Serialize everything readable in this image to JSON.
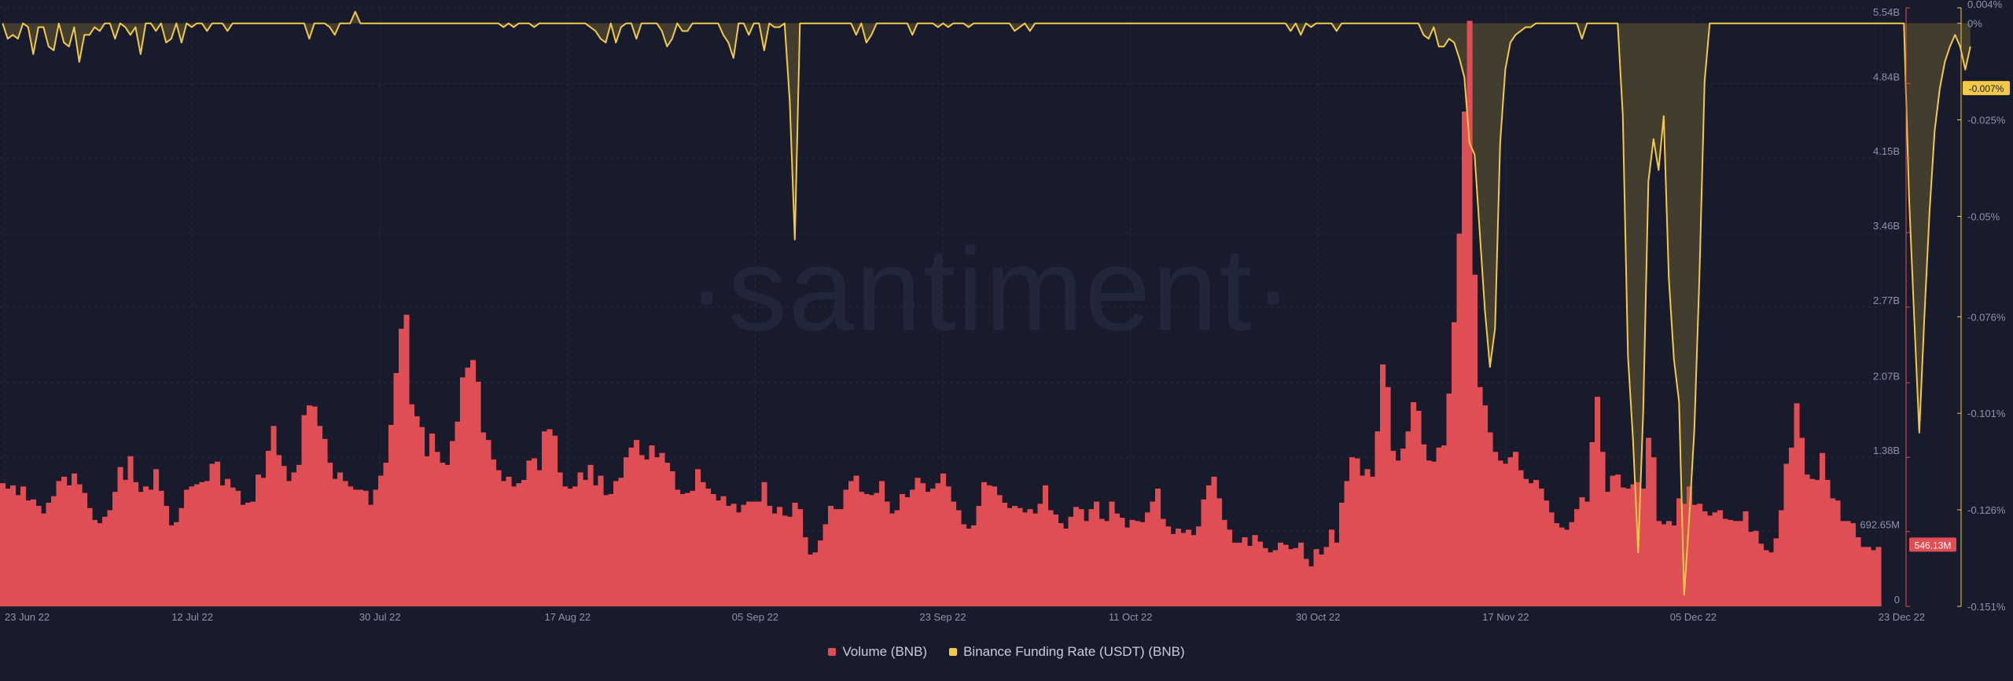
{
  "watermark": "·santiment·",
  "colors": {
    "background": "#181b2b",
    "volume": "#e04e55",
    "funding": "#f3c94a",
    "funding_fill": "#4a4330",
    "grid": "#262a3d"
  },
  "chart_data": {
    "type": "bar+line",
    "x_tick_labels": [
      "23 Jun 22",
      "12 Jul 22",
      "30 Jul 22",
      "17 Aug 22",
      "05 Sep 22",
      "23 Sep 22",
      "11 Oct 22",
      "30 Oct 22",
      "17 Nov 22",
      "05 Dec 22",
      "23 Dec 22"
    ],
    "left_axis": {
      "tick_labels": [
        "5.54B",
        "4.84B",
        "4.15B",
        "3.46B",
        "2.77B",
        "2.07B",
        "1.38B",
        "692.65M",
        "0"
      ],
      "ticks": [
        5.54,
        4.84,
        4.15,
        3.46,
        2.77,
        2.07,
        1.38,
        0.69265,
        0
      ],
      "range": [
        0,
        5.54
      ],
      "unit": "B",
      "current_label": "546.13M"
    },
    "right_axis": {
      "tick_labels": [
        "0.004%",
        "0%",
        "-0.025%",
        "-0.05%",
        "-0.076%",
        "-0.101%",
        "-0.126%",
        "-0.151%"
      ],
      "ticks": [
        0.004,
        0,
        -0.025,
        -0.05,
        -0.076,
        -0.101,
        -0.126,
        -0.151
      ],
      "range": [
        -0.151,
        0.004
      ],
      "unit": "%",
      "current_label": "-0.007%"
    },
    "series": [
      {
        "name": "Volume (BNB)",
        "axis": "left",
        "values": [
          1.14,
          1.09,
          1.12,
          1.03,
          1.11,
          0.98,
          0.99,
          0.93,
          0.86,
          0.96,
          1.02,
          1.16,
          1.2,
          1.12,
          1.23,
          1.13,
          1.05,
          0.91,
          0.8,
          0.77,
          0.83,
          0.89,
          1.06,
          1.29,
          1.17,
          1.39,
          1.15,
          1.06,
          1.11,
          1.08,
          1.27,
          1.07,
          0.93,
          0.75,
          0.78,
          0.91,
          1.08,
          1.11,
          1.13,
          1.15,
          1.16,
          1.32,
          1.34,
          1.12,
          1.18,
          1.1,
          1.07,
          0.94,
          0.96,
          0.97,
          1.22,
          1.19,
          1.44,
          1.67,
          1.4,
          1.3,
          1.16,
          1.24,
          1.31,
          1.77,
          1.86,
          1.85,
          1.67,
          1.55,
          1.33,
          1.18,
          1.24,
          1.16,
          1.11,
          1.08,
          1.08,
          1.07,
          0.94,
          1.08,
          1.21,
          1.33,
          1.68,
          2.16,
          2.57,
          2.7,
          1.87,
          1.76,
          1.66,
          1.39,
          1.6,
          1.43,
          1.33,
          1.31,
          1.53,
          1.71,
          2.12,
          2.21,
          2.28,
          2.08,
          1.61,
          1.54,
          1.36,
          1.26,
          1.16,
          1.2,
          1.11,
          1.14,
          1.17,
          1.35,
          1.37,
          1.26,
          1.62,
          1.64,
          1.58,
          1.24,
          1.11,
          1.09,
          1.11,
          1.24,
          1.17,
          1.31,
          1.12,
          1.21,
          1.03,
          1.04,
          1.16,
          1.19,
          1.38,
          1.47,
          1.54,
          1.4,
          1.36,
          1.49,
          1.38,
          1.42,
          1.33,
          1.25,
          1.08,
          1.04,
          1.05,
          1.07,
          1.27,
          1.15,
          1.09,
          1.04,
          0.98,
          1.02,
          0.93,
          0.95,
          0.87,
          0.94,
          0.97,
          0.97,
          0.97,
          1.15,
          0.93,
          0.86,
          0.92,
          0.84,
          0.83,
          0.96,
          0.9,
          0.64,
          0.48,
          0.5,
          0.61,
          0.76,
          0.93,
          0.9,
          0.9,
          1.08,
          1.16,
          1.21,
          1.06,
          1.04,
          1.03,
          1.05,
          1.16,
          0.97,
          0.86,
          0.89,
          1.04,
          1.01,
          1.08,
          1.19,
          1.14,
          1.06,
          1.09,
          1.14,
          1.23,
          1.11,
          0.97,
          0.89,
          0.76,
          0.72,
          0.75,
          0.93,
          1.15,
          1.12,
          1.11,
          1.03,
          0.96,
          0.91,
          0.93,
          0.91,
          0.87,
          0.9,
          0.86,
          0.95,
          1.12,
          0.89,
          0.85,
          0.77,
          0.72,
          0.83,
          0.92,
          0.9,
          0.79,
          0.9,
          0.97,
          0.81,
          0.79,
          0.97,
          0.86,
          0.82,
          0.73,
          0.8,
          0.79,
          0.78,
          0.87,
          0.97,
          1.09,
          0.81,
          0.74,
          0.67,
          0.72,
          0.68,
          0.71,
          0.66,
          0.74,
          0.99,
          1.12,
          1.2,
          1.0,
          0.8,
          0.71,
          0.59,
          0.59,
          0.64,
          0.56,
          0.66,
          0.6,
          0.54,
          0.5,
          0.52,
          0.59,
          0.57,
          0.53,
          0.54,
          0.59,
          0.44,
          0.37,
          0.53,
          0.48,
          0.55,
          0.71,
          0.59,
          0.96,
          1.16,
          1.38,
          1.37,
          1.21,
          1.27,
          1.2,
          1.62,
          2.24,
          2.03,
          1.44,
          1.35,
          1.46,
          1.62,
          1.89,
          1.81,
          1.5,
          1.35,
          1.34,
          1.47,
          1.49,
          1.97,
          2.63,
          3.45,
          4.58,
          5.42,
          3.07,
          2.03,
          1.86,
          1.61,
          1.43,
          1.35,
          1.32,
          1.38,
          1.43,
          1.26,
          1.18,
          1.14,
          1.17,
          1.09,
          0.98,
          0.87,
          0.77,
          0.73,
          0.71,
          0.78,
          0.9,
          1.01,
          0.97,
          1.52,
          1.94,
          1.43,
          1.06,
          1.21,
          1.22,
          1.1,
          1.09,
          1.13,
          1.15,
          1.09,
          1.56,
          1.38,
          0.79,
          0.76,
          0.79,
          0.75,
          1.0,
          0.95,
          1.11,
          0.94,
          0.95,
          0.88,
          0.84,
          0.87,
          0.89,
          0.81,
          0.8,
          0.79,
          0.79,
          0.88,
          0.69,
          0.7,
          0.58,
          0.52,
          0.5,
          0.63,
          0.89,
          1.32,
          1.47,
          1.88,
          1.56,
          1.22,
          1.18,
          1.17,
          1.42,
          1.17,
          1.0,
          0.98,
          0.79,
          0.79,
          0.77,
          0.64,
          0.55,
          0.55,
          0.52,
          0.55
        ],
        "color": "#e04e55"
      },
      {
        "name": "Binance Funding Rate (USDT) (BNB)",
        "axis": "right",
        "values": [
          0.0,
          -0.004,
          -0.003,
          -0.004,
          0.0,
          -0.001,
          -0.008,
          -0.001,
          -0.001,
          -0.006,
          -0.007,
          0.0,
          -0.005,
          -0.006,
          -0.001,
          -0.01,
          -0.003,
          -0.003,
          -0.001,
          -0.002,
          0.0,
          0.0,
          -0.004,
          0.0,
          -0.001,
          -0.003,
          -0.001,
          -0.008,
          0.0,
          0.0,
          -0.002,
          0.0,
          -0.005,
          -0.004,
          0.0,
          -0.005,
          0.0,
          -0.001,
          0.0,
          0.0,
          -0.002,
          0.0,
          0.0,
          0.0,
          -0.002,
          0.0,
          0.0,
          0.0,
          0.0,
          0.0,
          0.0,
          0.0,
          0.0,
          0.0,
          0.0,
          0.0,
          0.0,
          0.0,
          0.0,
          0.0,
          -0.004,
          0.0,
          0.0,
          0.0,
          -0.001,
          -0.003,
          0.0,
          0.0,
          0.0,
          0.003,
          0.0,
          0.0,
          0.0,
          0.0,
          0.0,
          0.0,
          0.0,
          0.0,
          0.0,
          0.0,
          0.0,
          0.0,
          0.0,
          0.0,
          0.0,
          0.0,
          0.0,
          0.0,
          0.0,
          0.0,
          0.0,
          0.0,
          0.0,
          0.0,
          0.0,
          0.0,
          0.0,
          0.0,
          -0.001,
          0.0,
          -0.001,
          0.0,
          0.0,
          0.0,
          -0.001,
          0.0,
          0.0,
          0.0,
          0.0,
          0.0,
          0.0,
          0.0,
          0.0,
          0.0,
          0.0,
          -0.001,
          -0.002,
          -0.004,
          -0.005,
          0.0,
          -0.005,
          -0.001,
          0.0,
          0.0,
          -0.004,
          0.0,
          0.0,
          0.0,
          0.0,
          -0.002,
          -0.006,
          -0.004,
          0.0,
          -0.002,
          -0.002,
          0.0,
          0.0,
          0.0,
          0.0,
          0.0,
          0.0,
          -0.003,
          -0.005,
          -0.009,
          0.0,
          0.0,
          -0.003,
          0.0,
          0.0,
          -0.007,
          0.0,
          -0.001,
          -0.001,
          0.0,
          -0.02,
          -0.056,
          0.0,
          0.0,
          0.0,
          0.0,
          0.0,
          0.0,
          0.0,
          0.0,
          0.0,
          0.0,
          0.0,
          -0.003,
          0.0,
          -0.005,
          -0.003,
          0.0,
          0.0,
          0.0,
          0.0,
          0.0,
          0.0,
          0.0,
          -0.003,
          0.0,
          0.0,
          0.0,
          0.0,
          -0.001,
          0.0,
          -0.001,
          0.0,
          0.0,
          0.0,
          -0.001,
          0.0,
          0.0,
          0.0,
          0.0,
          0.0,
          0.0,
          0.0,
          0.0,
          -0.002,
          -0.001,
          0.0,
          -0.002,
          0.0,
          0.0,
          0.0,
          0.0,
          0.0,
          0.0,
          0.0,
          0.0,
          0.0,
          0.0,
          0.0,
          0.0,
          0.0,
          0.0,
          0.0,
          0.0,
          0.0,
          0.0,
          0.0,
          0.0,
          0.0,
          0.0,
          0.0,
          0.0,
          0.0,
          0.0,
          0.0,
          0.0,
          0.0,
          0.0,
          0.0,
          0.0,
          0.0,
          0.0,
          0.0,
          0.0,
          0.0,
          0.0,
          0.0,
          0.0,
          0.0,
          0.0,
          0.0,
          0.0,
          0.0,
          0.0,
          0.0,
          0.0,
          0.0,
          0.0,
          -0.002,
          0.0,
          -0.003,
          0.0,
          -0.001,
          0.0,
          0.0,
          0.0,
          0.0,
          -0.002,
          0.0,
          0.0,
          0.0,
          0.0,
          0.0,
          0.0,
          0.0,
          0.0,
          0.0,
          0.0,
          0.0,
          0.0,
          0.0,
          0.0,
          0.0,
          0.0,
          -0.003,
          -0.004,
          -0.001,
          -0.006,
          -0.006,
          -0.004,
          -0.005,
          -0.009,
          -0.014,
          -0.031,
          -0.034,
          -0.054,
          -0.074,
          -0.089,
          -0.079,
          -0.031,
          -0.012,
          -0.005,
          -0.003,
          -0.002,
          -0.001,
          -0.001,
          0.0,
          0.0,
          0.0,
          0.0,
          0.0,
          0.0,
          0.0,
          0.0,
          0.0,
          -0.004,
          0.0,
          0.0,
          0.0,
          0.0,
          0.0,
          0.0,
          0.0,
          -0.024,
          -0.086,
          -0.108,
          -0.137,
          -0.1,
          -0.041,
          -0.03,
          -0.038,
          -0.024,
          -0.066,
          -0.087,
          -0.098,
          -0.148,
          -0.128,
          -0.105,
          -0.065,
          -0.015,
          0.0,
          0.0,
          0.0,
          0.0,
          0.0,
          0.0,
          0.0,
          0.0,
          0.0,
          0.0,
          0.0,
          0.0,
          0.0,
          0.0,
          0.0,
          0.0,
          0.0,
          0.0,
          0.0,
          0.0,
          0.0,
          0.0,
          0.0,
          0.0,
          0.0,
          0.0,
          0.0,
          0.0,
          0.0,
          0.0,
          0.0,
          0.0,
          0.0,
          0.0,
          0.0,
          0.0,
          0.0,
          0.0,
          0.0,
          -0.045,
          -0.076,
          -0.106,
          -0.076,
          -0.049,
          -0.028,
          -0.017,
          -0.01,
          -0.006,
          -0.003,
          -0.006,
          -0.012,
          -0.006
        ],
        "color": "#f3c94a"
      }
    ],
    "grid": true,
    "legend_position": "bottom-center"
  }
}
